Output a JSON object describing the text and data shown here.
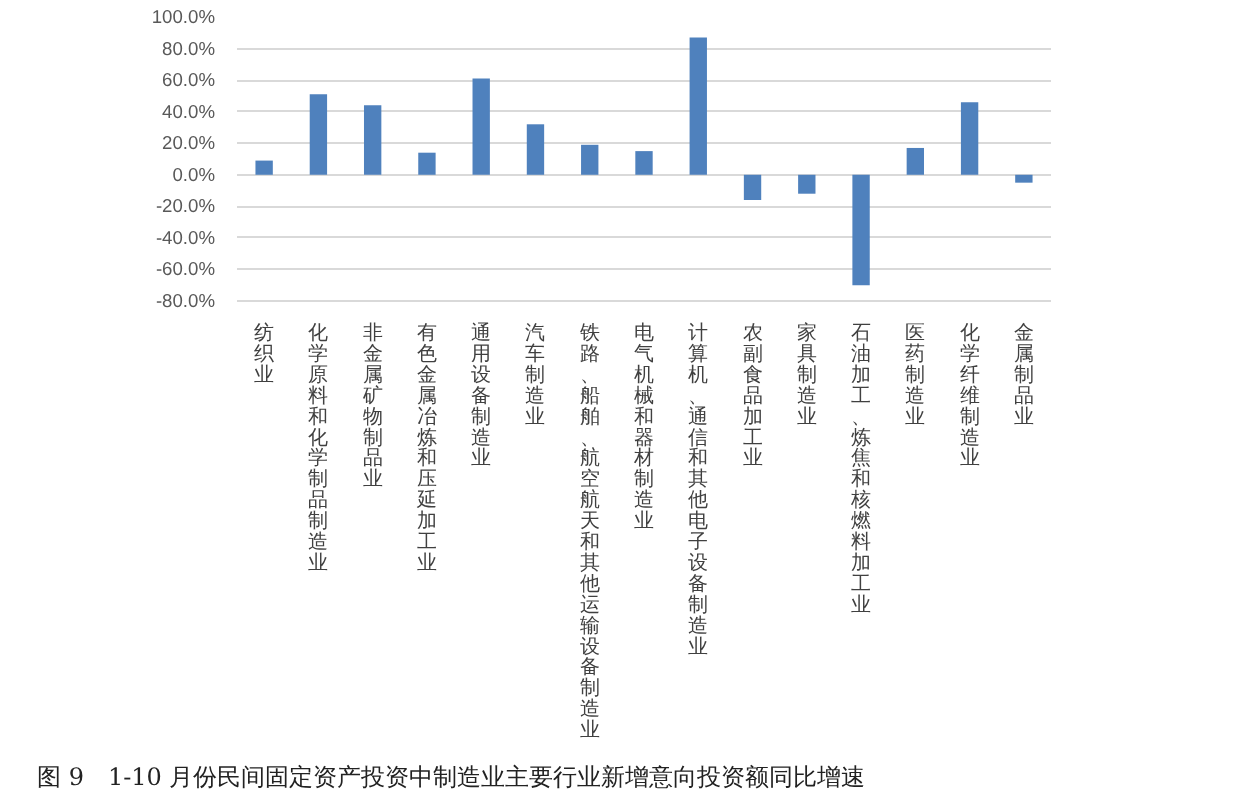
{
  "chart_data": {
    "type": "bar",
    "title": "图 9　1-10 月份民间固定资产投资中制造业主要行业新增意向投资额同比增速",
    "categories": [
      "纺织业",
      "化学原料和化学制品制造业",
      "非金属矿物制品业",
      "有色金属冶炼和压延加工业",
      "通用设备制造业",
      "汽车制造业",
      "铁路、船舶、航空航天和其他运输设备制造业",
      "电气机械和器材制造业",
      "计算机、通信和其他电子设备制造业",
      "农副食品加工业",
      "家具制造业",
      "石油加工、炼焦和核燃料加工业",
      "医药制造业",
      "化学纤维制造业",
      "金属制品业"
    ],
    "values": [
      9,
      51,
      44,
      14,
      61,
      32,
      19,
      15,
      87,
      -16,
      -12,
      -70,
      17,
      46,
      -5
    ],
    "color": "#4f81bd",
    "ylim": [
      -80,
      100
    ],
    "yticks": [
      {
        "value": -80,
        "label": "-80.0%"
      },
      {
        "value": -60,
        "label": "-60.0%"
      },
      {
        "value": -40,
        "label": "-40.0%"
      },
      {
        "value": -20,
        "label": "-20.0%"
      },
      {
        "value": 0,
        "label": "0.0%"
      },
      {
        "value": 20,
        "label": "20.0%"
      },
      {
        "value": 40,
        "label": "40.0%"
      },
      {
        "value": 60,
        "label": "60.0%"
      },
      {
        "value": 80,
        "label": "80.0%"
      },
      {
        "value": 100,
        "label": "100.0%"
      }
    ],
    "grid": "y"
  }
}
